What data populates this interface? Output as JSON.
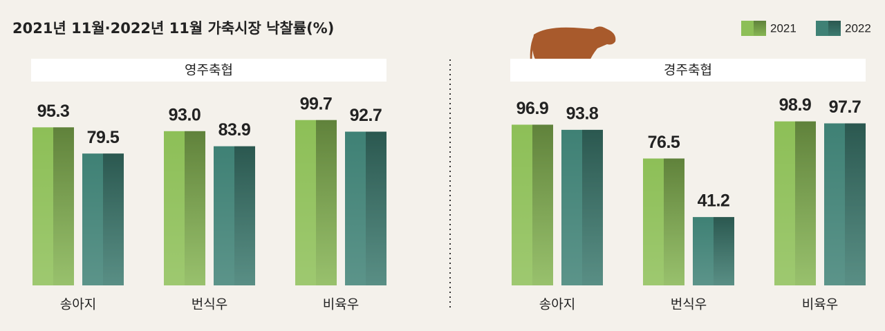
{
  "title": "2021년 11월·2022년 11월 가축시장 낙찰률(%)",
  "chart_data": [
    {
      "type": "bar",
      "title": "영주축협",
      "categories": [
        "송아지",
        "번식우",
        "비육우"
      ],
      "series": [
        {
          "name": "2021",
          "color": "#8dbf57",
          "values": [
            95.3,
            93.0,
            99.7
          ],
          "value_labels": [
            "95.3",
            "93.0",
            "99.7"
          ]
        },
        {
          "name": "2022",
          "color": "#3f8175",
          "values": [
            79.5,
            83.9,
            92.7
          ],
          "value_labels": [
            "79.5",
            "83.9",
            "92.7"
          ]
        }
      ]
    },
    {
      "type": "bar",
      "title": "경주축협",
      "categories": [
        "송아지",
        "번식우",
        "비육우"
      ],
      "series": [
        {
          "name": "2021",
          "color": "#8dbf57",
          "values": [
            96.9,
            76.5,
            98.9
          ],
          "value_labels": [
            "96.9",
            "76.5",
            "98.9"
          ]
        },
        {
          "name": "2022",
          "color": "#3f8175",
          "values": [
            93.8,
            41.2,
            97.7
          ],
          "value_labels": [
            "93.8",
            "41.2",
            "97.7"
          ]
        }
      ]
    }
  ]
}
